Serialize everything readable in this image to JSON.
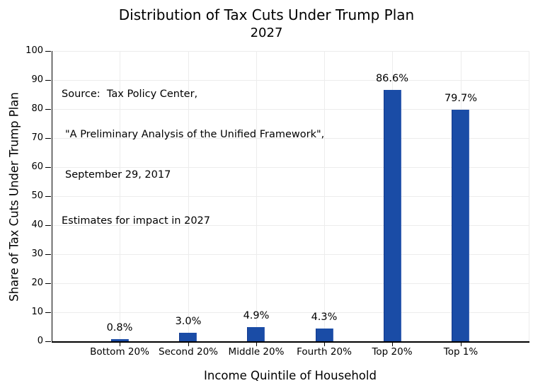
{
  "chart_data": {
    "type": "bar",
    "title": "Distribution of Tax Cuts Under Trump Plan",
    "subtitle": "2027",
    "xlabel": "Income Quintile of Household",
    "ylabel": "Share of Tax Cuts Under Trump Plan",
    "categories": [
      "Bottom 20%",
      "Second 20%",
      "Middle 20%",
      "Fourth 20%",
      "Top 20%",
      "Top 1%"
    ],
    "values": [
      0.8,
      3.0,
      4.9,
      4.3,
      86.6,
      79.7
    ],
    "value_labels": [
      "0.8%",
      "3.0%",
      "4.9%",
      "4.3%",
      "86.6%",
      "79.7%"
    ],
    "ylim": [
      0,
      100
    ],
    "yticks": [
      0,
      10,
      20,
      30,
      40,
      50,
      60,
      70,
      80,
      90,
      100
    ],
    "grid": true,
    "legend": false,
    "source_lines": [
      "Source:  Tax Policy Center,",
      "\"A Preliminary Analysis of the Unified Framework\",",
      "September 29, 2017",
      "Estimates for impact in 2027"
    ],
    "colors": {
      "bar": "#1A4CA6",
      "bar_edge_dark": "#12398C",
      "gridline": "#ECECEC",
      "axis": "#000000",
      "background": "#FFFFFF",
      "text": "#000000"
    }
  }
}
